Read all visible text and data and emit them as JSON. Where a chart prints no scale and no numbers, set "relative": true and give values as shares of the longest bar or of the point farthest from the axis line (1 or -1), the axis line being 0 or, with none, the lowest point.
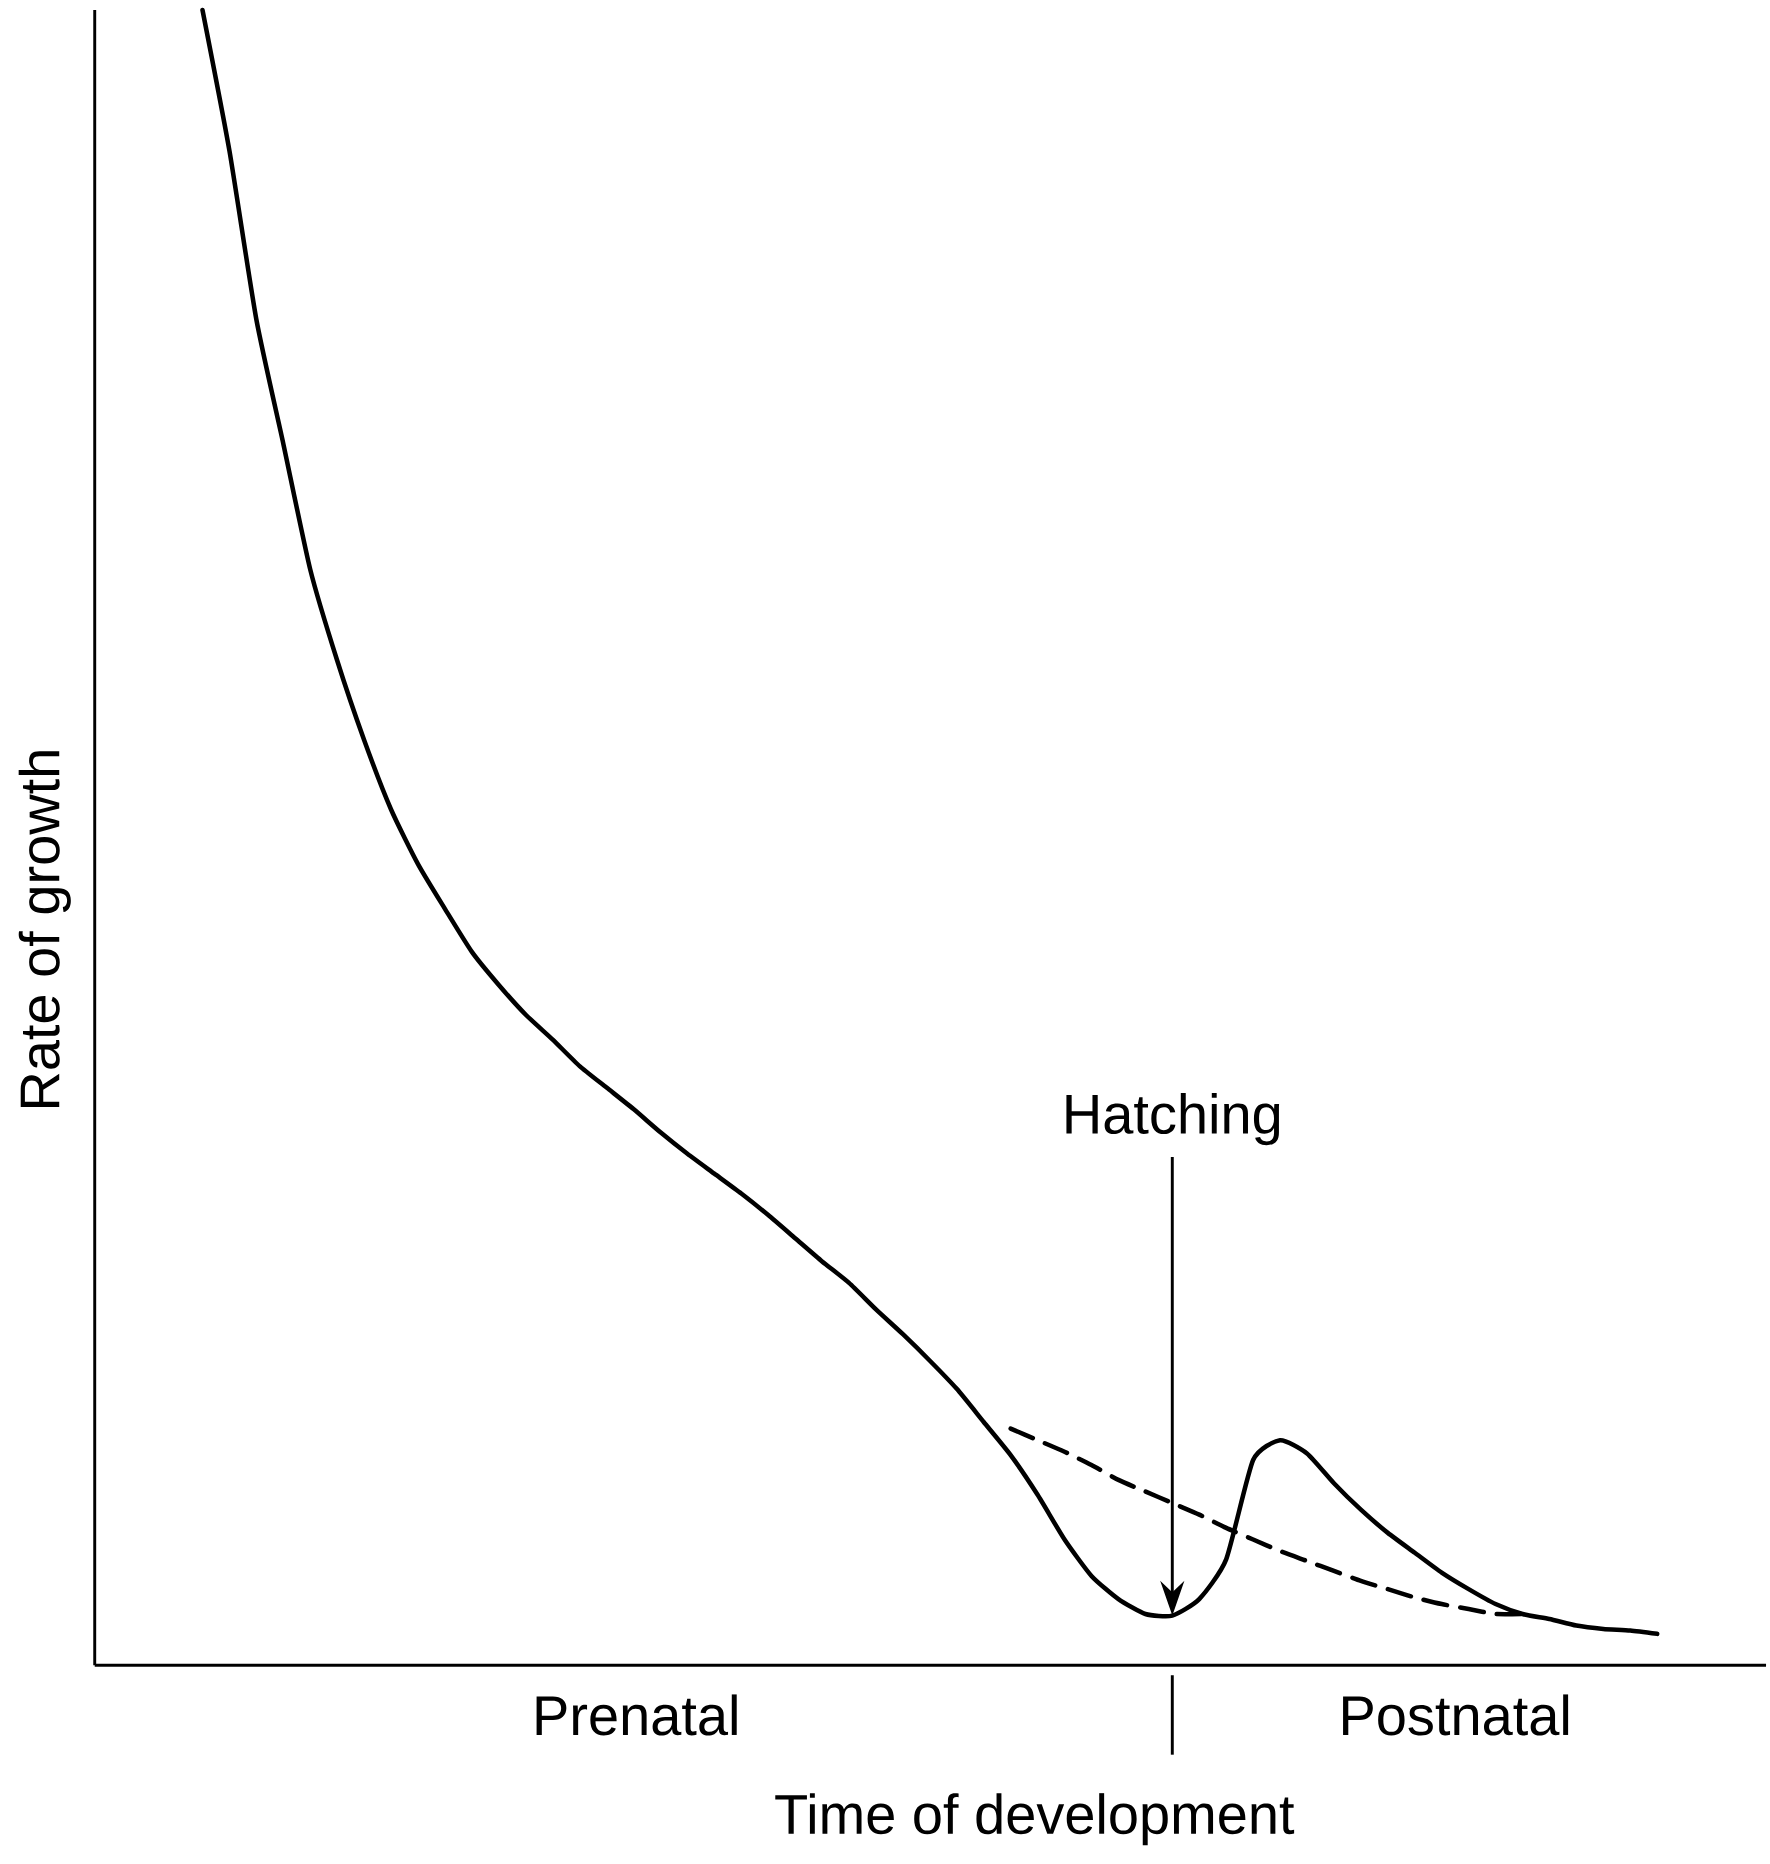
{
  "chart_data": {
    "type": "line",
    "relative": true,
    "xlabel": "Time of development",
    "ylabel": "Rate of growth",
    "annotations": [
      "Hatching",
      "Prenatal",
      "Postnatal"
    ],
    "categories": [
      null,
      null,
      null,
      null,
      null,
      null,
      null,
      null,
      null,
      null,
      null,
      null,
      null,
      null,
      null,
      null,
      null,
      null,
      null,
      null,
      null,
      null,
      null,
      null,
      null,
      null,
      null,
      null,
      null,
      null,
      null,
      null,
      null,
      null,
      null,
      null,
      null,
      null,
      null,
      null,
      null,
      null,
      null,
      null,
      null,
      null,
      null,
      null,
      null,
      null,
      null,
      null,
      null,
      null,
      null,
      null,
      null,
      null,
      null,
      null,
      null,
      null
    ],
    "series": [
      {
        "color": "#000000",
        "line_style": "solid",
        "values": [
          null,
          null,
          null,
          null,
          1.0,
          0.915,
          0.813,
          0.738,
          0.662,
          0.607,
          0.559,
          0.517,
          0.484,
          0.457,
          0.431,
          0.411,
          0.393,
          0.378,
          0.362,
          0.349,
          0.336,
          0.322,
          0.309,
          0.297,
          0.285,
          0.272,
          0.258,
          0.244,
          0.231,
          0.215,
          0.2,
          0.184,
          0.167,
          0.147,
          0.127,
          0.103,
          0.076,
          0.054,
          0.04,
          0.031,
          0.03,
          0.04,
          0.064,
          0.124,
          0.136,
          0.128,
          0.11,
          0.094,
          0.08,
          0.068,
          0.056,
          0.046,
          0.037,
          0.031,
          0.028,
          0.024,
          0.022,
          0.021,
          0.019,
          null,
          null,
          null
        ]
      },
      {
        "color": "#000000",
        "line_style": "dashed",
        "values": [
          null,
          null,
          null,
          null,
          null,
          null,
          null,
          null,
          null,
          null,
          null,
          null,
          null,
          null,
          null,
          null,
          null,
          null,
          null,
          null,
          null,
          null,
          null,
          null,
          null,
          null,
          null,
          null,
          null,
          null,
          null,
          null,
          null,
          null,
          0.143,
          0.136,
          0.129,
          0.121,
          0.112,
          0.105,
          0.098,
          0.091,
          0.083,
          0.076,
          0.069,
          0.063,
          0.057,
          0.051,
          0.046,
          0.041,
          0.037,
          0.034,
          0.031,
          0.031,
          null,
          null,
          null,
          null,
          null,
          null,
          null,
          null
        ]
      }
    ]
  }
}
